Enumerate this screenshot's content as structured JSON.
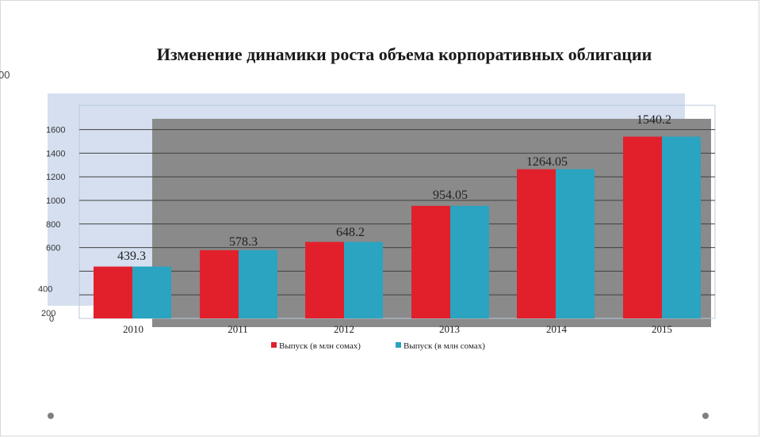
{
  "slide": {
    "stray_label": "00"
  },
  "chart_data": {
    "type": "bar",
    "title": "Изменение динамики роста объема корпоративных облигации",
    "categories": [
      "2010",
      "2011",
      "2012",
      "2013",
      "2014",
      "2015"
    ],
    "series": [
      {
        "name": "Выпуск (в млн сомах)",
        "color": "#e2202c",
        "values": [
          439.3,
          578.3,
          648.2,
          954.05,
          1264.05,
          1540.2
        ]
      },
      {
        "name": "Выпуск (в млн сомах)",
        "color": "#2aa4c0",
        "values": [
          439.3,
          578.3,
          648.2,
          954.05,
          1264.05,
          1540.2
        ]
      }
    ],
    "data_labels": [
      "439.3",
      "578.3",
      "648.2",
      "954.05",
      "1264.05",
      "1540.2"
    ],
    "yticks": [
      0,
      200,
      400,
      600,
      800,
      1000,
      1200,
      1400,
      1600
    ],
    "ylim": [
      0,
      1600
    ],
    "grid": true,
    "legend": "bottom",
    "colors": {
      "panel": "#d5dff0",
      "shadow": "#8a8a8a",
      "grid": "#404040"
    }
  }
}
